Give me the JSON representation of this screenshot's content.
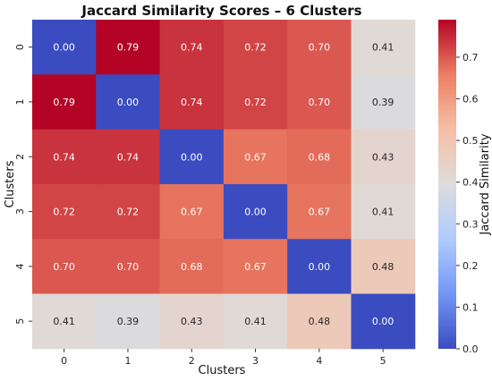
{
  "chart_data": {
    "type": "heatmap",
    "title": "Jaccard Similarity Scores – 6 Clusters",
    "xlabel": "Clusters",
    "ylabel": "Clusters",
    "x_categories": [
      "0",
      "1",
      "2",
      "3",
      "4",
      "5"
    ],
    "y_categories": [
      "0",
      "1",
      "2",
      "3",
      "4",
      "5"
    ],
    "values": [
      [
        0.0,
        0.79,
        0.74,
        0.72,
        0.7,
        0.41
      ],
      [
        0.79,
        0.0,
        0.74,
        0.72,
        0.7,
        0.39
      ],
      [
        0.74,
        0.74,
        0.0,
        0.67,
        0.68,
        0.43
      ],
      [
        0.72,
        0.72,
        0.67,
        0.0,
        0.67,
        0.41
      ],
      [
        0.7,
        0.7,
        0.68,
        0.67,
        0.0,
        0.48
      ],
      [
        0.41,
        0.39,
        0.43,
        0.41,
        0.48,
        0.0
      ]
    ],
    "value_format": "0.00",
    "colormap": "coolwarm",
    "vmin": 0.0,
    "vmax": 0.79,
    "colorbar": {
      "label": "Jaccard Similarity",
      "ticks": [
        "0.0",
        "0.1",
        "0.2",
        "0.3",
        "0.4",
        "0.5",
        "0.6",
        "0.7"
      ]
    },
    "colormap_stops": [
      "#3b4cc0",
      "#7396f5",
      "#b0cbfc",
      "#dddcdc",
      "#f6bfa6",
      "#ec7f63",
      "#b40426"
    ]
  }
}
